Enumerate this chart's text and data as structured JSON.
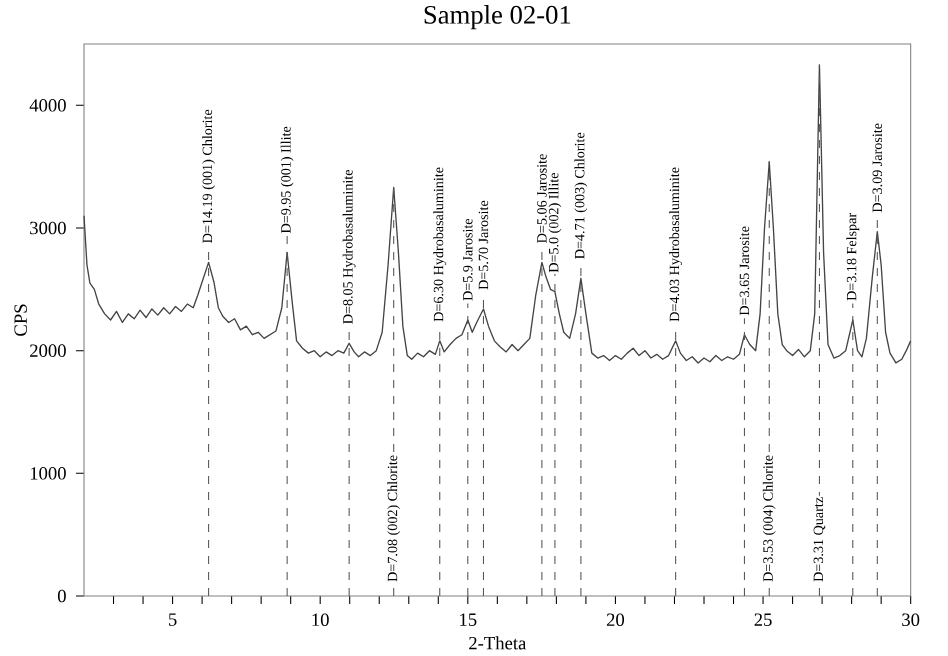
{
  "chart_data": {
    "type": "line",
    "title": "Sample 02-01",
    "xlabel": "2-Theta",
    "ylabel": "CPS",
    "xlim": [
      2,
      30
    ],
    "ylim": [
      0,
      4500
    ],
    "xticks": [
      {
        "value": 3,
        "label": null
      },
      {
        "value": 4,
        "label": null
      },
      5,
      {
        "value": 6,
        "label": null
      },
      {
        "value": 7,
        "label": null
      },
      {
        "value": 8,
        "label": null
      },
      {
        "value": 9,
        "label": null
      },
      10,
      {
        "value": 11,
        "label": null
      },
      {
        "value": 12,
        "label": null
      },
      {
        "value": 13,
        "label": null
      },
      {
        "value": 14,
        "label": null
      },
      15,
      {
        "value": 16,
        "label": null
      },
      {
        "value": 17,
        "label": null
      },
      {
        "value": 18,
        "label": null
      },
      {
        "value": 19,
        "label": null
      },
      20,
      {
        "value": 21,
        "label": null
      },
      {
        "value": 22,
        "label": null
      },
      {
        "value": 23,
        "label": null
      },
      {
        "value": 24,
        "label": null
      },
      25,
      {
        "value": 26,
        "label": null
      },
      {
        "value": 27,
        "label": null
      },
      {
        "value": 28,
        "label": null
      },
      {
        "value": 29,
        "label": null
      },
      30
    ],
    "yticks": [
      0,
      1000,
      2000,
      3000,
      4000
    ],
    "grid": false,
    "marker": "none",
    "line_style": "solid",
    "series": [
      {
        "color": "#444444",
        "x": [
          2.0,
          2.1,
          2.2,
          2.35,
          2.5,
          2.7,
          2.9,
          3.1,
          3.3,
          3.5,
          3.7,
          3.9,
          4.1,
          4.3,
          4.5,
          4.7,
          4.9,
          5.1,
          5.3,
          5.5,
          5.7,
          5.85,
          6.0,
          6.22,
          6.4,
          6.55,
          6.7,
          6.9,
          7.1,
          7.3,
          7.5,
          7.7,
          7.9,
          8.1,
          8.3,
          8.5,
          8.7,
          8.88,
          9.05,
          9.2,
          9.4,
          9.6,
          9.8,
          10.0,
          10.2,
          10.4,
          10.6,
          10.8,
          10.98,
          11.15,
          11.3,
          11.5,
          11.7,
          11.9,
          12.1,
          12.3,
          12.49,
          12.65,
          12.8,
          12.95,
          13.1,
          13.3,
          13.5,
          13.7,
          13.9,
          14.05,
          14.2,
          14.4,
          14.6,
          14.8,
          15.0,
          15.15,
          15.3,
          15.53,
          15.7,
          15.9,
          16.1,
          16.3,
          16.5,
          16.7,
          16.9,
          17.1,
          17.3,
          17.51,
          17.65,
          17.8,
          17.95,
          18.1,
          18.25,
          18.45,
          18.65,
          18.83,
          19.0,
          19.2,
          19.4,
          19.6,
          19.8,
          20.0,
          20.2,
          20.4,
          20.6,
          20.8,
          21.0,
          21.2,
          21.4,
          21.6,
          21.8,
          22.04,
          22.2,
          22.4,
          22.6,
          22.8,
          23.0,
          23.2,
          23.4,
          23.6,
          23.8,
          24.0,
          24.2,
          24.37,
          24.55,
          24.75,
          24.9,
          25.05,
          25.21,
          25.35,
          25.5,
          25.65,
          25.8,
          26.0,
          26.2,
          26.4,
          26.6,
          26.75,
          26.91,
          27.05,
          27.2,
          27.4,
          27.6,
          27.8,
          28.04,
          28.2,
          28.35,
          28.5,
          28.7,
          28.87,
          29.0,
          29.15,
          29.3,
          29.5,
          29.7,
          29.85,
          30.0
        ],
        "values": [
          3100,
          2700,
          2550,
          2500,
          2380,
          2300,
          2250,
          2320,
          2230,
          2300,
          2260,
          2330,
          2270,
          2340,
          2290,
          2350,
          2300,
          2360,
          2320,
          2380,
          2350,
          2450,
          2560,
          2720,
          2560,
          2350,
          2280,
          2230,
          2260,
          2170,
          2200,
          2130,
          2150,
          2100,
          2130,
          2160,
          2350,
          2800,
          2400,
          2080,
          2020,
          1980,
          2000,
          1950,
          1990,
          1960,
          2000,
          1980,
          2060,
          1990,
          1950,
          1990,
          1960,
          2000,
          2150,
          2700,
          3330,
          2800,
          2200,
          1960,
          1930,
          1980,
          1950,
          2000,
          1970,
          2080,
          1990,
          2050,
          2100,
          2130,
          2250,
          2150,
          2230,
          2340,
          2200,
          2080,
          2030,
          1990,
          2050,
          2000,
          2050,
          2100,
          2450,
          2720,
          2600,
          2500,
          2480,
          2300,
          2150,
          2100,
          2300,
          2590,
          2300,
          1980,
          1940,
          1960,
          1920,
          1960,
          1930,
          1980,
          2020,
          1960,
          2000,
          1940,
          1970,
          1930,
          1960,
          2080,
          1980,
          1920,
          1950,
          1900,
          1940,
          1910,
          1960,
          1920,
          1950,
          1930,
          1970,
          2130,
          2050,
          2000,
          2300,
          3000,
          3540,
          3000,
          2300,
          2050,
          2000,
          1960,
          2010,
          1950,
          2000,
          2300,
          4330,
          2800,
          2050,
          1940,
          1960,
          2000,
          2250,
          2000,
          1950,
          2100,
          2600,
          2970,
          2700,
          2150,
          1980,
          1900,
          1930,
          2000,
          2080
        ]
      }
    ],
    "ref_lines": [
      {
        "axis": "x",
        "value": 6.22,
        "color": "#555555",
        "line_style": "dashed"
      },
      {
        "axis": "x",
        "value": 8.88,
        "color": "#555555",
        "line_style": "dashed"
      },
      {
        "axis": "x",
        "value": 10.98,
        "color": "#555555",
        "line_style": "dashed"
      },
      {
        "axis": "x",
        "value": 12.49,
        "color": "#555555",
        "line_style": "dashed"
      },
      {
        "axis": "x",
        "value": 14.05,
        "color": "#555555",
        "line_style": "dashed"
      },
      {
        "axis": "x",
        "value": 15.0,
        "color": "#555555",
        "line_style": "dashed"
      },
      {
        "axis": "x",
        "value": 15.53,
        "color": "#555555",
        "line_style": "dashed"
      },
      {
        "axis": "x",
        "value": 17.51,
        "color": "#555555",
        "line_style": "dashed"
      },
      {
        "axis": "x",
        "value": 17.95,
        "color": "#555555",
        "line_style": "dashed"
      },
      {
        "axis": "x",
        "value": 18.83,
        "color": "#555555",
        "line_style": "dashed"
      },
      {
        "axis": "x",
        "value": 22.04,
        "color": "#555555",
        "line_style": "dashed"
      },
      {
        "axis": "x",
        "value": 24.37,
        "color": "#555555",
        "line_style": "dashed"
      },
      {
        "axis": "x",
        "value": 25.21,
        "color": "#555555",
        "line_style": "dashed"
      },
      {
        "axis": "x",
        "value": 26.91,
        "color": "#555555",
        "line_style": "dashed"
      },
      {
        "axis": "x",
        "value": 28.04,
        "color": "#555555",
        "line_style": "dashed"
      },
      {
        "axis": "x",
        "value": 28.87,
        "color": "#555555",
        "line_style": "dashed"
      }
    ],
    "annotations": [
      {
        "text": "D=14.19 (001) Chlorite",
        "x": 6.22,
        "y": 2860
      },
      {
        "text": "D=9.95 (001) Illite",
        "x": 8.88,
        "y": 2940
      },
      {
        "text": "D=8.05 Hydrobasaluminite",
        "x": 10.98,
        "y": 2200
      },
      {
        "text": "D=7.08 (002) Chlorite",
        "x": 12.49,
        "y": 100
      },
      {
        "text": "D=6.30 Hydrobasaluminite",
        "x": 14.05,
        "y": 2220
      },
      {
        "text": "D=5.9 Jarosite",
        "x": 15.0,
        "y": 2390
      },
      {
        "text": "D=5.70 Jarosite",
        "x": 15.53,
        "y": 2480
      },
      {
        "text": "D=5.06 Jarosite",
        "x": 17.51,
        "y": 2860
      },
      {
        "text": "D=5.0 (002) Illite",
        "x": 17.95,
        "y": 2620
      },
      {
        "text": "D=4.71 (003) Chlorite",
        "x": 18.83,
        "y": 2730
      },
      {
        "text": "D=4.03 Hydrobasaluminite",
        "x": 22.04,
        "y": 2220
      },
      {
        "text": "D=3.65 Jarosite",
        "x": 24.37,
        "y": 2270
      },
      {
        "text": "D=3.53 (004) Chlorite",
        "x": 25.21,
        "y": 100
      },
      {
        "text": "D=3.31 Quartz",
        "x": 26.91,
        "y": 100
      },
      {
        "text": "D=3.18 Felspar",
        "x": 28.04,
        "y": 2390
      },
      {
        "text": "D=3.09 Jarosite",
        "x": 28.87,
        "y": 3110
      }
    ]
  }
}
